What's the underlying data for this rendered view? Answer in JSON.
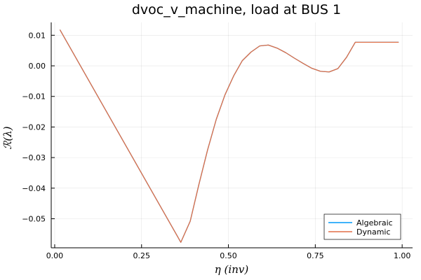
{
  "chart_data": {
    "type": "line",
    "title": "dvoc_v_machine, load at BUS 1",
    "xlabel": "η (inv)",
    "ylabel": "ℛ(λ)",
    "xlim": [
      -0.01,
      1.03
    ],
    "ylim": [
      -0.0595,
      0.0142
    ],
    "xticks": [
      0.0,
      0.25,
      0.5,
      0.75,
      1.0
    ],
    "xtick_labels": [
      "0.00",
      "0.25",
      "0.50",
      "0.75",
      "1.00"
    ],
    "yticks": [
      0.01,
      0.0,
      -0.01,
      -0.02,
      -0.03,
      -0.04,
      -0.05
    ],
    "ytick_labels": [
      "0.01",
      "0.00",
      "−0.01",
      "−0.02",
      "−0.03",
      "−0.04",
      "−0.05"
    ],
    "grid": true,
    "legend_position": "bottom-right",
    "x": [
      0.015,
      0.363,
      0.39,
      0.415,
      0.44,
      0.465,
      0.49,
      0.515,
      0.54,
      0.565,
      0.59,
      0.615,
      0.64,
      0.665,
      0.69,
      0.715,
      0.74,
      0.765,
      0.79,
      0.815,
      0.84,
      0.865,
      0.89,
      0.915,
      0.94,
      0.965,
      0.99
    ],
    "series": [
      {
        "name": "Algebraic",
        "color": "#009af9",
        "values": [
          0.0118,
          -0.0577,
          -0.0508,
          -0.0388,
          -0.0275,
          -0.0175,
          -0.0095,
          -0.0033,
          0.0017,
          0.0045,
          0.0065,
          0.0068,
          0.0058,
          0.0043,
          0.0025,
          0.0008,
          -0.0008,
          -0.0018,
          -0.002,
          -0.0009,
          0.0028,
          0.0077,
          0.0077,
          0.0077,
          0.0077,
          0.0077,
          0.0077
        ]
      },
      {
        "name": "Dynamic",
        "color": "#e26f46",
        "values": [
          0.0118,
          -0.0577,
          -0.0508,
          -0.0388,
          -0.0275,
          -0.0175,
          -0.0095,
          -0.0033,
          0.0017,
          0.0045,
          0.0065,
          0.0068,
          0.0058,
          0.0043,
          0.0025,
          0.0008,
          -0.0008,
          -0.0018,
          -0.002,
          -0.0009,
          0.0028,
          0.0077,
          0.0077,
          0.0077,
          0.0077,
          0.0077,
          0.0077
        ]
      }
    ]
  }
}
